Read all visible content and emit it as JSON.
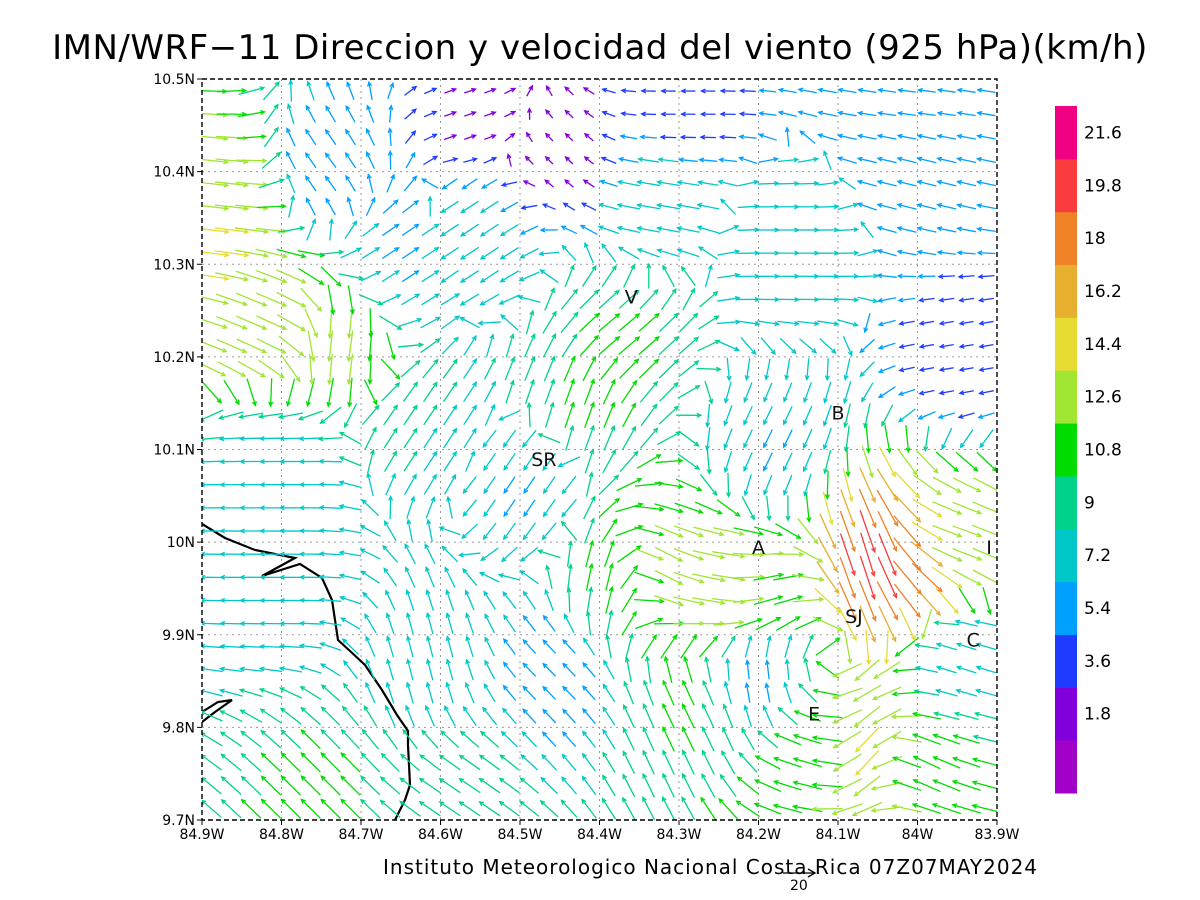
{
  "title": "IMN/WRF−11 Direccion y velocidad del viento (925 hPa)(km/h)",
  "footer": "Instituto Meteorologico Nacional Costa Rica 07Z07MAY2024",
  "reference_vector": {
    "value": 20,
    "label": "20"
  },
  "axes": {
    "x_ticks": [
      "84.9W",
      "84.8W",
      "84.7W",
      "84.6W",
      "84.5W",
      "84.4W",
      "84.3W",
      "84.2W",
      "84.1W",
      "84W",
      "83.9W"
    ],
    "y_ticks": [
      "9.7N",
      "9.8N",
      "9.9N",
      "10N",
      "10.1N",
      "10.2N",
      "10.3N",
      "10.4N",
      "10.5N"
    ],
    "lon_range": [
      -84.9,
      -83.9
    ],
    "lat_range": [
      9.7,
      10.5
    ],
    "grid": true
  },
  "colorbar": {
    "labels": [
      "1.8",
      "3.6",
      "5.4",
      "7.2",
      "9",
      "10.8",
      "12.6",
      "14.4",
      "16.2",
      "18",
      "19.8",
      "21.6"
    ],
    "colors": [
      "#a000c8",
      "#8200dc",
      "#1e3cff",
      "#00a0ff",
      "#00c8c8",
      "#00d28c",
      "#00dc00",
      "#a0e632",
      "#e6dc32",
      "#e6af2d",
      "#f08228",
      "#fa3c3c",
      "#f00082"
    ]
  },
  "stations": [
    {
      "name": "V",
      "lon": -84.36,
      "lat": 10.265
    },
    {
      "name": "B",
      "lon": -84.1,
      "lat": 10.14
    },
    {
      "name": "SR",
      "lon": -84.47,
      "lat": 10.09
    },
    {
      "name": "A",
      "lon": -84.2,
      "lat": 9.995
    },
    {
      "name": "I",
      "lon": -83.91,
      "lat": 9.995
    },
    {
      "name": "SJ",
      "lon": -84.08,
      "lat": 9.92
    },
    {
      "name": "C",
      "lon": -83.93,
      "lat": 9.895
    },
    {
      "name": "E",
      "lon": -84.13,
      "lat": 9.815
    }
  ],
  "wind_zones": [
    {
      "lon": -84.88,
      "lat": 10.37,
      "u": 9,
      "v": -1,
      "spd": 14
    },
    {
      "lon": -84.88,
      "lat": 10.33,
      "u": 8,
      "v": -1,
      "spd": 15
    },
    {
      "lon": -84.82,
      "lat": 10.25,
      "u": 7,
      "v": -3,
      "spd": 14
    },
    {
      "lon": -84.72,
      "lat": 10.22,
      "u": -1,
      "v": -6,
      "spd": 13
    },
    {
      "lon": -84.38,
      "lat": 10.22,
      "u": 5,
      "v": 4,
      "spd": 11
    },
    {
      "lon": -84.42,
      "lat": 10.16,
      "u": 2,
      "v": 6,
      "spd": 11
    },
    {
      "lon": -84.33,
      "lat": 10.37,
      "u": -6,
      "v": 1,
      "spd": 9
    },
    {
      "lon": -84.55,
      "lat": 10.33,
      "u": -6,
      "v": -4,
      "spd": 8
    },
    {
      "lon": -84.33,
      "lat": 9.97,
      "u": 6,
      "v": -4,
      "spd": 13
    },
    {
      "lon": -84.24,
      "lat": 9.95,
      "u": 8,
      "v": -2,
      "spd": 15
    },
    {
      "lon": -84.2,
      "lat": 9.94,
      "u": 6,
      "v": 2,
      "spd": 12
    },
    {
      "lon": -84.38,
      "lat": 9.96,
      "u": 1,
      "v": 7,
      "spd": 11
    },
    {
      "lon": -84.05,
      "lat": 9.98,
      "u": 2,
      "v": -8,
      "spd": 21
    },
    {
      "lon": -84.0,
      "lat": 9.97,
      "u": 6,
      "v": -6,
      "spd": 20
    },
    {
      "lon": -83.96,
      "lat": 10.0,
      "u": 7,
      "v": -2,
      "spd": 12
    },
    {
      "lon": -84.06,
      "lat": 9.77,
      "u": -4,
      "v": -6,
      "spd": 15
    },
    {
      "lon": -84.01,
      "lat": 9.76,
      "u": -5,
      "v": 3,
      "spd": 12
    },
    {
      "lon": -84.13,
      "lat": 9.77,
      "u": -6,
      "v": 2,
      "spd": 12
    },
    {
      "lon": -84.28,
      "lat": 9.82,
      "u": -3,
      "v": 6,
      "spd": 11
    },
    {
      "lon": -84.75,
      "lat": 9.73,
      "u": -5,
      "v": 5,
      "spd": 11
    },
    {
      "lon": -84.58,
      "lat": 9.73,
      "u": -6,
      "v": 4,
      "spd": 10
    },
    {
      "lon": -84.8,
      "lat": 9.95,
      "u": -9,
      "v": 0,
      "spd": 8
    },
    {
      "lon": -84.8,
      "lat": 10.07,
      "u": -9,
      "v": 0,
      "spd": 8
    },
    {
      "lon": -84.62,
      "lat": 9.87,
      "u": -2,
      "v": 8,
      "spd": 8
    },
    {
      "lon": -84.5,
      "lat": 10.06,
      "u": -4,
      "v": -6,
      "spd": 7
    },
    {
      "lon": -84.18,
      "lat": 10.1,
      "u": -3,
      "v": -6,
      "spd": 7
    },
    {
      "lon": -84.15,
      "lat": 10.32,
      "u": 8,
      "v": 0,
      "spd": 8
    },
    {
      "lon": -84.0,
      "lat": 10.4,
      "u": -8,
      "v": 2,
      "spd": 7
    },
    {
      "lon": -84.0,
      "lat": 10.48,
      "u": -8,
      "v": 1,
      "spd": 6
    },
    {
      "lon": -84.55,
      "lat": 10.46,
      "u": 3,
      "v": 1,
      "spd": 3
    },
    {
      "lon": -84.45,
      "lat": 10.42,
      "u": -2,
      "v": 2,
      "spd": 2
    },
    {
      "lon": -84.3,
      "lat": 10.47,
      "u": -5,
      "v": 0,
      "spd": 4
    },
    {
      "lon": -84.45,
      "lat": 9.86,
      "u": -4,
      "v": 4,
      "spd": 6
    },
    {
      "lon": -84.2,
      "lat": 9.86,
      "u": -1,
      "v": 6,
      "spd": 6
    },
    {
      "lon": -83.95,
      "lat": 9.88,
      "u": -6,
      "v": 2,
      "spd": 7
    },
    {
      "lon": -83.95,
      "lat": 10.2,
      "u": -6,
      "v": -1,
      "spd": 4
    },
    {
      "lon": -84.62,
      "lat": 10.12,
      "u": 4,
      "v": 6,
      "spd": 9
    },
    {
      "lon": -84.65,
      "lat": 10.3,
      "u": 6,
      "v": 4,
      "spd": 7
    },
    {
      "lon": -84.75,
      "lat": 10.4,
      "u": -3,
      "v": 4,
      "spd": 6
    }
  ]
}
